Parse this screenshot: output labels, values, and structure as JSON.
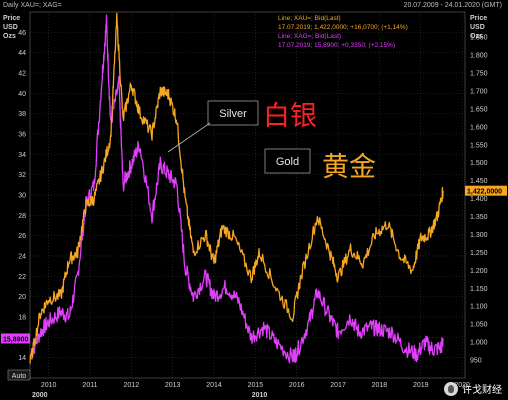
{
  "header": {
    "title": "Daily XAU=; XAG=",
    "date_range": "20.07.2009 - 24.01.2020 (GMT)"
  },
  "left_axis_header": [
    "Price",
    "USD",
    "Ozs"
  ],
  "right_axis_header": [
    "Price",
    "USD",
    "Ozs"
  ],
  "legend": {
    "gold_line1": "Line; XAU=; Bid(Last)",
    "gold_line2": "17.07.2019; 1,422,0000; +16,0700; (+1,14%)",
    "silver_line1": "Line; XAG=; Bid(Last)",
    "silver_line2": "17.07.2019; 15,8900; +0,3350; (+2,15%)"
  },
  "annotations": {
    "silver_en": "Silver",
    "silver_cn": "白银",
    "gold_en": "Gold",
    "gold_cn": "黄金"
  },
  "last_labels": {
    "silver": "15,8900",
    "gold": "1,422,0000"
  },
  "auto_button": "Auto",
  "watermark": "许戈财经",
  "colors": {
    "background": "#000000",
    "gold": "#f5a623",
    "silver": "#e040fb",
    "grid": "#3a3a3a",
    "text": "#cfcfcf",
    "annotation_red": "#ff2020",
    "annotation_orange": "#f5a623"
  },
  "chart_data": {
    "type": "line",
    "x_ticks": [
      "2010",
      "2011",
      "2012",
      "2013",
      "2014",
      "2015",
      "2016",
      "2017",
      "2018",
      "2019",
      "2020"
    ],
    "x_major": [
      "2000",
      "2010"
    ],
    "x_range": [
      2009.55,
      2020.07
    ],
    "left_axis": {
      "range": [
        12,
        48
      ],
      "ticks": [
        "14",
        "16",
        "18",
        "20",
        "22",
        "24",
        "26",
        "28",
        "30",
        "32",
        "34",
        "36",
        "38",
        "40",
        "42",
        "44",
        "46"
      ]
    },
    "right_axis": {
      "range": [
        900,
        1920
      ],
      "ticks": [
        "950",
        "1.000",
        "1.050",
        "1.100",
        "1.150",
        "1.200",
        "1.250",
        "1.300",
        "1.350",
        "1.400",
        "1.450",
        "1.500",
        "1.550",
        "1.600",
        "1.650",
        "1.700",
        "1.750",
        "1.800",
        "1.850"
      ]
    },
    "grid": true,
    "series": [
      {
        "name": "XAG=",
        "axis": "left",
        "x": [
          2009.55,
          2009.8,
          2010.0,
          2010.3,
          2010.5,
          2010.7,
          2010.9,
          2011.1,
          2011.3,
          2011.4,
          2011.5,
          2011.7,
          2011.8,
          2012.0,
          2012.2,
          2012.5,
          2012.7,
          2012.9,
          2013.1,
          2013.3,
          2013.5,
          2013.8,
          2014.0,
          2014.3,
          2014.6,
          2014.9,
          2015.2,
          2015.5,
          2015.9,
          2016.0,
          2016.3,
          2016.5,
          2016.8,
          2017.0,
          2017.3,
          2017.5,
          2017.8,
          2018.0,
          2018.3,
          2018.6,
          2018.9,
          2019.1,
          2019.3,
          2019.5,
          2019.54
        ],
        "y": [
          14.0,
          16.5,
          17.5,
          18.5,
          18.0,
          22.0,
          29.0,
          31.0,
          42.0,
          47.0,
          37.0,
          41.0,
          31.0,
          33.0,
          35.0,
          28.0,
          33.0,
          32.0,
          31.0,
          23.0,
          20.0,
          22.0,
          20.0,
          21.0,
          19.5,
          16.0,
          17.0,
          15.5,
          14.0,
          14.5,
          17.5,
          20.5,
          18.0,
          16.5,
          18.0,
          16.5,
          17.0,
          16.8,
          16.5,
          15.0,
          14.3,
          15.5,
          14.8,
          15.0,
          15.89
        ]
      },
      {
        "name": "XAU=",
        "axis": "right",
        "x": [
          2009.55,
          2009.8,
          2010.0,
          2010.3,
          2010.5,
          2010.7,
          2010.9,
          2011.1,
          2011.3,
          2011.5,
          2011.65,
          2011.8,
          2012.0,
          2012.2,
          2012.5,
          2012.7,
          2012.9,
          2013.1,
          2013.3,
          2013.5,
          2013.8,
          2014.0,
          2014.2,
          2014.5,
          2014.9,
          2015.1,
          2015.5,
          2015.9,
          2016.1,
          2016.5,
          2016.8,
          2017.0,
          2017.3,
          2017.6,
          2017.9,
          2018.2,
          2018.5,
          2018.8,
          2019.0,
          2019.2,
          2019.4,
          2019.54
        ],
        "y": [
          940,
          1080,
          1120,
          1130,
          1230,
          1250,
          1380,
          1400,
          1480,
          1570,
          1900,
          1620,
          1720,
          1640,
          1580,
          1700,
          1690,
          1620,
          1400,
          1250,
          1300,
          1220,
          1320,
          1290,
          1180,
          1250,
          1150,
          1070,
          1180,
          1350,
          1250,
          1180,
          1260,
          1220,
          1300,
          1330,
          1240,
          1200,
          1290,
          1300,
          1350,
          1422
        ]
      }
    ]
  }
}
